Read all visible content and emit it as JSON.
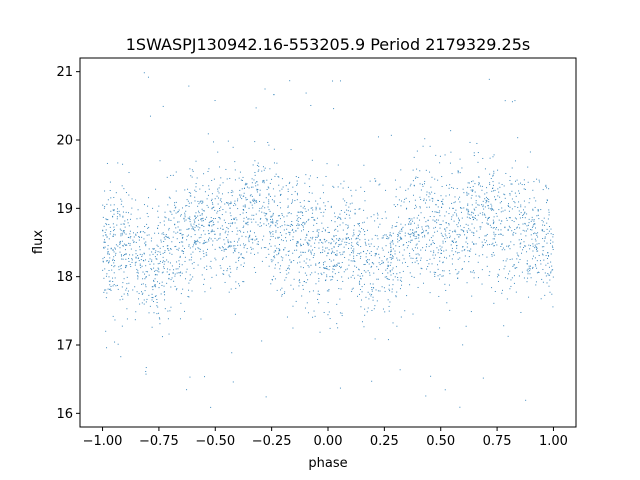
{
  "chart_data": {
    "type": "scatter",
    "title": "1SWASPJ130942.16-553205.9 Period 2179329.25s",
    "xlabel": "phase",
    "ylabel": "flux",
    "xlim": [
      -1.1,
      1.1
    ],
    "ylim": [
      15.8,
      21.2
    ],
    "xticks": [
      -1.0,
      -0.75,
      -0.5,
      -0.25,
      0.0,
      0.25,
      0.5,
      0.75,
      1.0
    ],
    "xtick_labels": [
      "−1.00",
      "−0.75",
      "−0.50",
      "−0.25",
      "0.00",
      "0.25",
      "0.50",
      "0.75",
      "1.00"
    ],
    "yticks": [
      16,
      17,
      18,
      19,
      20,
      21
    ],
    "ytick_labels": [
      "16",
      "17",
      "18",
      "19",
      "20",
      "21"
    ],
    "grid": false,
    "marker_color": "#1f77b4",
    "phase_range": [
      -1.0,
      1.0
    ],
    "flux_profile": [
      {
        "phase": -1.0,
        "flux": 18.35
      },
      {
        "phase": -0.9,
        "flux": 18.45
      },
      {
        "phase": -0.8,
        "flux": 18.15
      },
      {
        "phase": -0.7,
        "flux": 18.4
      },
      {
        "phase": -0.6,
        "flux": 18.75
      },
      {
        "phase": -0.5,
        "flux": 18.75
      },
      {
        "phase": -0.4,
        "flux": 18.65
      },
      {
        "phase": -0.33,
        "flux": 19.05
      },
      {
        "phase": -0.2,
        "flux": 18.6
      },
      {
        "phase": -0.1,
        "flux": 18.6
      },
      {
        "phase": 0.0,
        "flux": 18.35
      },
      {
        "phase": 0.1,
        "flux": 18.45
      },
      {
        "phase": 0.2,
        "flux": 18.15
      },
      {
        "phase": 0.3,
        "flux": 18.4
      },
      {
        "phase": 0.4,
        "flux": 18.75
      },
      {
        "phase": 0.5,
        "flux": 18.75
      },
      {
        "phase": 0.6,
        "flux": 18.65
      },
      {
        "phase": 0.67,
        "flux": 19.05
      },
      {
        "phase": 0.8,
        "flux": 18.6
      },
      {
        "phase": 0.9,
        "flux": 18.6
      },
      {
        "phase": 1.0,
        "flux": 18.35
      }
    ],
    "spread": 0.45
  }
}
